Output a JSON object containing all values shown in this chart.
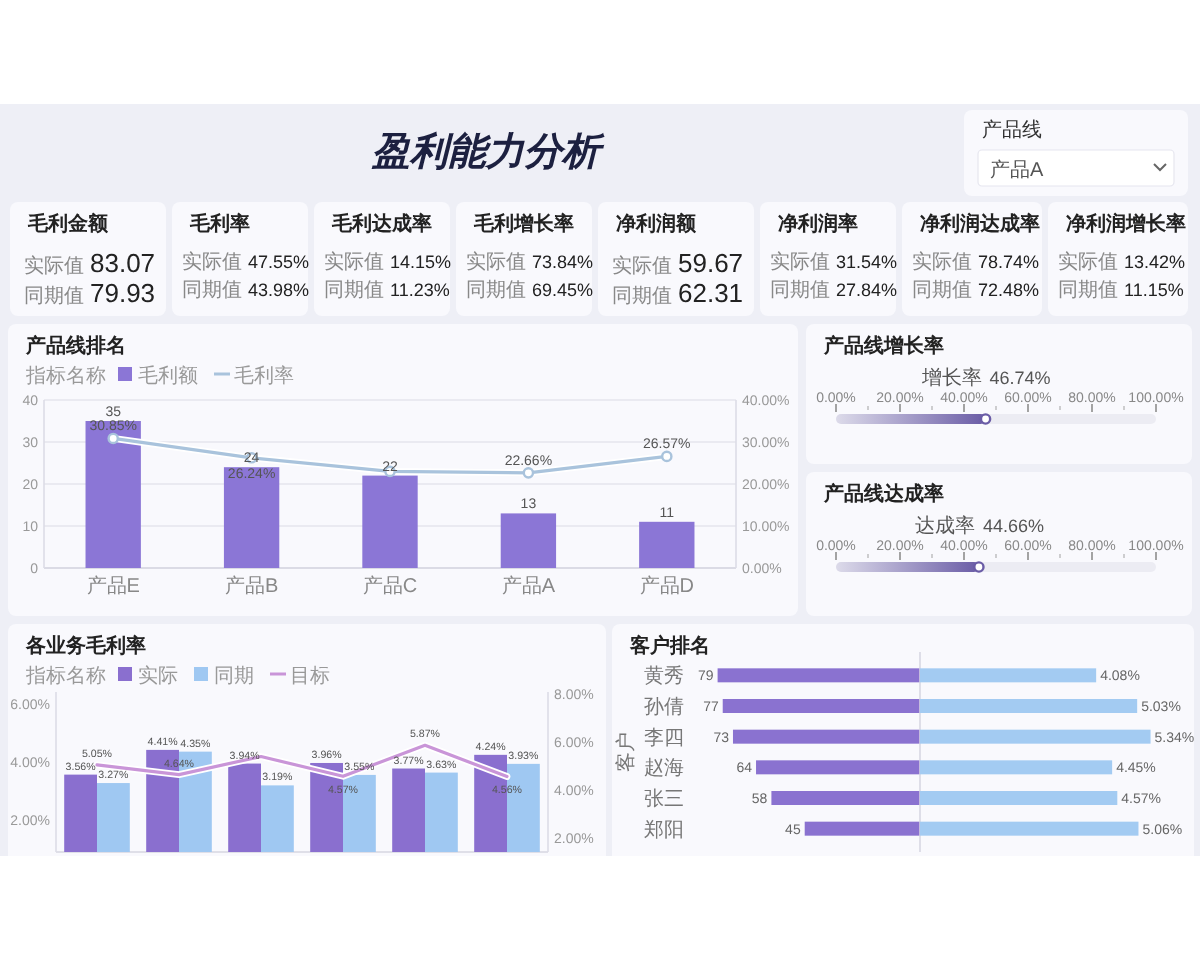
{
  "chart_data": [
    {
      "type": "other",
      "title": "盈利能力分析",
      "annotations": [
        "产品线",
        "产品A"
      ]
    },
    {
      "type": "other",
      "title": "毛利金额",
      "annotations": [
        "实际值",
        "83.07",
        "同期值",
        "79.93"
      ]
    },
    {
      "type": "other",
      "title": "毛利率",
      "annotations": [
        "实际值",
        "47.55%",
        "同期值",
        "43.98%"
      ]
    },
    {
      "type": "other",
      "title": "毛利达成率",
      "annotations": [
        "实际值",
        "14.15%",
        "同期值",
        "11.23%"
      ]
    },
    {
      "type": "other",
      "title": "毛利增长率",
      "annotations": [
        "实际值",
        "73.84%",
        "同期值",
        "69.45%"
      ]
    },
    {
      "type": "other",
      "title": "净利润额",
      "annotations": [
        "实际值",
        "59.67",
        "同期值",
        "62.31"
      ]
    },
    {
      "type": "other",
      "title": "净利润率",
      "annotations": [
        "实际值",
        "31.54%",
        "同期值",
        "27.84%"
      ]
    },
    {
      "type": "other",
      "title": "净利润达成率",
      "annotations": [
        "实际值",
        "78.74%",
        "同期值",
        "72.48%"
      ]
    },
    {
      "type": "other",
      "title": "净利润增长率",
      "annotations": [
        "实际值",
        "13.42%",
        "同期值",
        "11.15%"
      ]
    },
    {
      "type": "bar",
      "title": "产品线排名",
      "legend_title": "指标名称",
      "legend": "top left",
      "categories": [
        "产品E",
        "产品B",
        "产品C",
        "产品A",
        "产品D"
      ],
      "series": [
        {
          "name": "毛利额",
          "type": "bar",
          "color": "#8b76d6",
          "values": [
            35,
            24,
            22,
            13,
            11
          ],
          "value_labels": [
            "35",
            "24",
            "22",
            "13",
            "11"
          ]
        },
        {
          "name": "毛利率",
          "type": "line",
          "axis": "y2",
          "color": "#a9c3dc",
          "values": [
            30.85,
            26.24,
            23,
            22.66,
            26.57
          ],
          "value_labels": [
            "30.85%",
            "26.24%",
            null,
            "22.66%",
            "26.57%"
          ]
        }
      ],
      "ylim": [
        0,
        40
      ],
      "yticks": [
        0,
        10,
        20,
        30,
        40
      ],
      "y2lim": [
        0,
        40
      ],
      "y2ticks": [
        {
          "value": 0,
          "label": "0.00%"
        },
        {
          "value": 10,
          "label": "10.00%"
        },
        {
          "value": 20,
          "label": "20.00%"
        },
        {
          "value": 30,
          "label": "30.00%"
        },
        {
          "value": 40,
          "label": "40.00%"
        }
      ],
      "grid": "y",
      "marker": "circle"
    },
    {
      "type": "bar",
      "orientation": "horizontal",
      "title": "产品线增长率",
      "categories": [
        "增长率"
      ],
      "values": [
        46.74
      ],
      "value_labels": [
        "46.74%"
      ],
      "color": "#6a5ca6",
      "xlim": [
        0,
        100
      ],
      "xticks": [
        {
          "value": 0,
          "label": "0.00%"
        },
        {
          "value": 20,
          "label": "20.00%"
        },
        {
          "value": 40,
          "label": "40.00%"
        },
        {
          "value": 60,
          "label": "60.00%"
        },
        {
          "value": 80,
          "label": "80.00%"
        },
        {
          "value": 100,
          "label": "100.00%"
        }
      ]
    },
    {
      "type": "bar",
      "orientation": "horizontal",
      "title": "产品线达成率",
      "categories": [
        "达成率"
      ],
      "values": [
        44.66
      ],
      "value_labels": [
        "44.66%"
      ],
      "color": "#6a5ca6",
      "xlim": [
        0,
        100
      ],
      "xticks": [
        {
          "value": 0,
          "label": "0.00%"
        },
        {
          "value": 20,
          "label": "20.00%"
        },
        {
          "value": 40,
          "label": "40.00%"
        },
        {
          "value": 60,
          "label": "60.00%"
        },
        {
          "value": 80,
          "label": "80.00%"
        },
        {
          "value": 100,
          "label": "100.00%"
        }
      ]
    },
    {
      "type": "bar",
      "title": "各业务毛利率",
      "legend_title": "指标名称",
      "legend": "top left",
      "categories": [
        null,
        null,
        null,
        null,
        null,
        null
      ],
      "series": [
        {
          "name": "实际",
          "type": "bar",
          "color": "#8a6fcf",
          "values": [
            3.56,
            4.41,
            3.94,
            3.96,
            3.77,
            4.24
          ],
          "value_labels": [
            "3.56%",
            "4.41%",
            "3.94%",
            "3.96%",
            "3.77%",
            "4.24%"
          ]
        },
        {
          "name": "同期",
          "type": "bar",
          "color": "#9fc8f2",
          "values": [
            3.27,
            4.35,
            3.19,
            3.55,
            3.63,
            3.93
          ],
          "value_labels": [
            "3.27%",
            "4.35%",
            "3.19%",
            "3.55%",
            "3.63%",
            "3.93%"
          ]
        },
        {
          "name": "目标",
          "type": "line",
          "axis": "y2",
          "color": "#c995d8",
          "values": [
            5.05,
            4.64,
            5.4,
            4.57,
            5.87,
            4.56
          ],
          "value_labels": [
            "5.05%",
            "4.64%",
            null,
            "4.57%",
            "5.87%",
            "4.56%"
          ]
        }
      ],
      "ylim": [
        0.9,
        6.4
      ],
      "yticks": [
        {
          "value": 2,
          "label": "2.00%"
        },
        {
          "value": 4,
          "label": "4.00%"
        },
        {
          "value": 6,
          "label": "6.00%"
        }
      ],
      "y2lim": [
        1.4,
        8.1
      ],
      "y2ticks": [
        {
          "value": 2,
          "label": "2.00%"
        },
        {
          "value": 4,
          "label": "4.00%"
        },
        {
          "value": 6,
          "label": "6.00%"
        },
        {
          "value": 8,
          "label": "8.00%"
        }
      ]
    },
    {
      "type": "bar",
      "orientation": "horizontal",
      "title": "客户排名",
      "ylabel": "客户",
      "categories": [
        "黄秀",
        "孙倩",
        "李四",
        "赵海",
        "张三",
        "郑阳"
      ],
      "values": [
        79,
        77,
        73,
        64,
        58,
        45
      ],
      "data_labels": true,
      "color": "#8a72d0",
      "tick_labels": "y"
    },
    {
      "type": "bar",
      "orientation": "horizontal",
      "categories": [
        null,
        null,
        null,
        null,
        null,
        null
      ],
      "values": [
        4.08,
        5.03,
        5.34,
        4.45,
        4.57,
        5.06
      ],
      "value_labels": [
        "4.08%",
        "5.03%",
        "5.34%",
        "4.45%",
        "4.57%",
        "5.06%"
      ],
      "color": "#a3cbf2",
      "tick_labels": false
    }
  ]
}
